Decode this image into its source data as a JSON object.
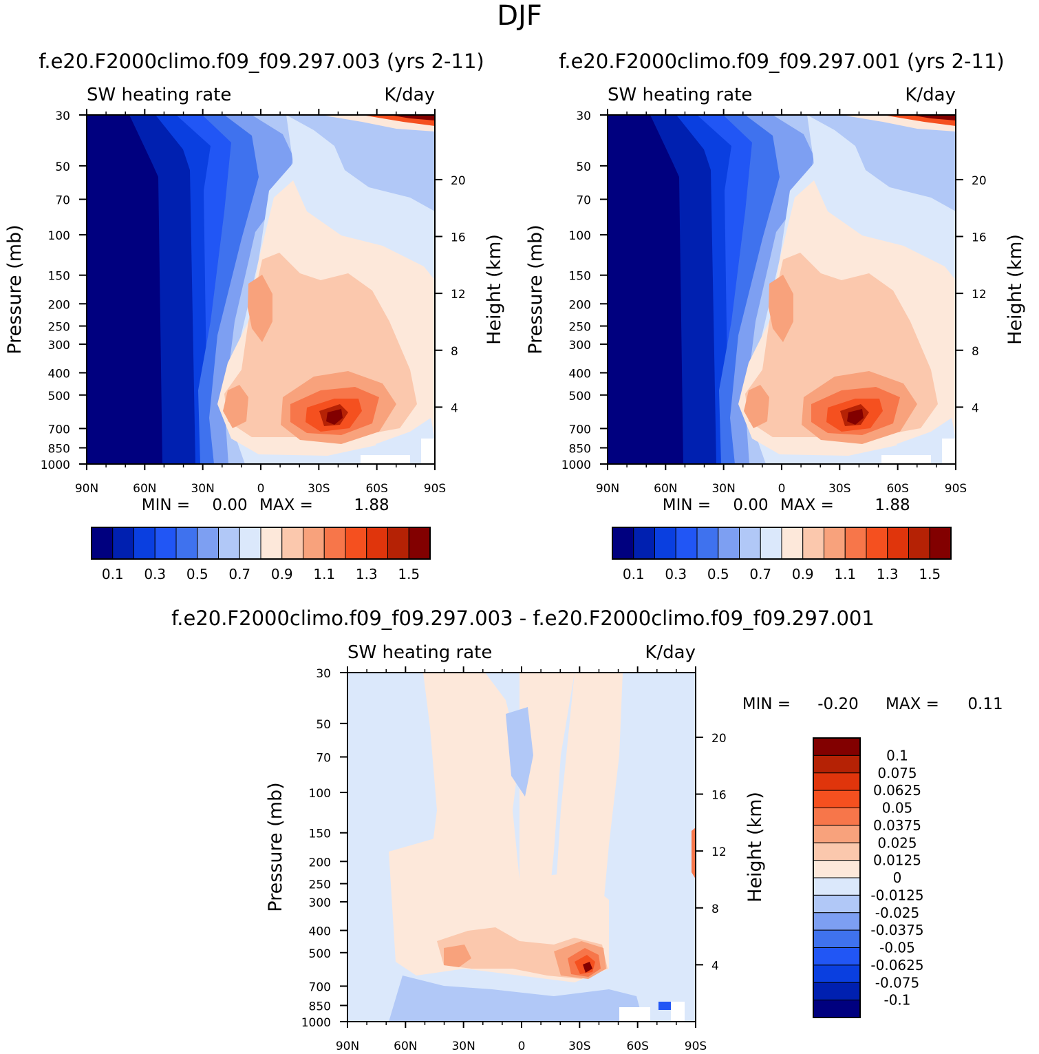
{
  "figure_title": "DJF",
  "chart_data": [
    {
      "type": "heatmap",
      "subtype": "filled-contour",
      "case_title": "f.e20.F2000climo.f09_f09.297.003 (yrs 2-11)",
      "left_label": "SW heating rate",
      "right_label": "K/day",
      "ylabel": "Pressure (mb)",
      "ylabel_right": "Height (km)",
      "x_ticks": [
        "90N",
        "60N",
        "30N",
        "0",
        "30S",
        "60S",
        "90S"
      ],
      "y_ticks": [
        30,
        50,
        70,
        100,
        150,
        200,
        250,
        300,
        400,
        500,
        700,
        850,
        1000
      ],
      "height_ticks": [
        20,
        16,
        12,
        8,
        4
      ],
      "stats": {
        "min_label": "MIN =",
        "min": "0.00",
        "max_label": "MAX =",
        "max": "1.88"
      },
      "colorbar_orientation": "horizontal",
      "colorbar_labels": [
        "0.1",
        "0.3",
        "0.5",
        "0.7",
        "0.9",
        "1.1",
        "1.3",
        "1.5"
      ]
    },
    {
      "type": "heatmap",
      "subtype": "filled-contour",
      "case_title": "f.e20.F2000climo.f09_f09.297.001 (yrs 2-11)",
      "left_label": "SW heating rate",
      "right_label": "K/day",
      "ylabel": "Pressure (mb)",
      "ylabel_right": "Height (km)",
      "x_ticks": [
        "90N",
        "60N",
        "30N",
        "0",
        "30S",
        "60S",
        "90S"
      ],
      "y_ticks": [
        30,
        50,
        70,
        100,
        150,
        200,
        250,
        300,
        400,
        500,
        700,
        850,
        1000
      ],
      "height_ticks": [
        20,
        16,
        12,
        8,
        4
      ],
      "stats": {
        "min_label": "MIN =",
        "min": "0.00",
        "max_label": "MAX =",
        "max": "1.88"
      },
      "colorbar_orientation": "horizontal",
      "colorbar_labels": [
        "0.1",
        "0.3",
        "0.5",
        "0.7",
        "0.9",
        "1.1",
        "1.3",
        "1.5"
      ]
    },
    {
      "type": "heatmap",
      "subtype": "filled-contour-difference",
      "case_title": "f.e20.F2000climo.f09_f09.297.003 - f.e20.F2000climo.f09_f09.297.001",
      "left_label": "SW heating rate",
      "right_label": "K/day",
      "ylabel": "Pressure (mb)",
      "ylabel_right": "Height (km)",
      "x_ticks": [
        "90N",
        "60N",
        "30N",
        "0",
        "30S",
        "60S",
        "90S"
      ],
      "y_ticks": [
        30,
        50,
        70,
        100,
        150,
        200,
        250,
        300,
        400,
        500,
        700,
        850,
        1000
      ],
      "height_ticks": [
        20,
        16,
        12,
        8,
        4
      ],
      "stats": {
        "min_label": "MIN =",
        "min": "-0.20",
        "max_label": "MAX =",
        "max": "0.11"
      },
      "colorbar_orientation": "vertical",
      "colorbar_labels": [
        "0.1",
        "0.075",
        "0.0625",
        "0.05",
        "0.0375",
        "0.025",
        "0.0125",
        "0",
        "-0.0125",
        "-0.025",
        "-0.0375",
        "-0.05",
        "-0.0625",
        "-0.075",
        "-0.1"
      ]
    }
  ],
  "palette": [
    "#00007f",
    "#0020b0",
    "#0a3fe0",
    "#2156f5",
    "#3f72ee",
    "#7d9ff2",
    "#b1c8f7",
    "#dbe8fb",
    "#fde8da",
    "#fbc8ad",
    "#f8a27c",
    "#f7764a",
    "#f5501f",
    "#e0350c",
    "#b52205",
    "#820000"
  ]
}
